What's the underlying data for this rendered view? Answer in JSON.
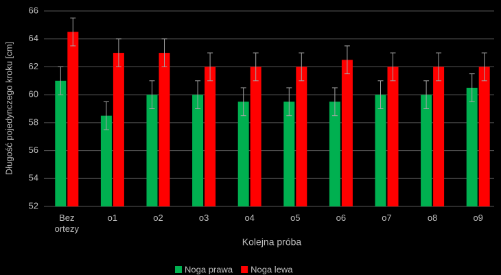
{
  "chart_data": {
    "type": "bar",
    "categories": [
      "Bez ortezy",
      "o1",
      "o2",
      "o3",
      "o4",
      "o5",
      "o6",
      "o7",
      "o8",
      "o9"
    ],
    "series": [
      {
        "name": "Noga prawa",
        "color": "#00b050",
        "values": [
          61,
          58.5,
          60,
          60,
          59.5,
          59.5,
          59.5,
          60,
          60,
          60.5
        ],
        "errors": [
          1,
          1,
          1,
          1,
          1,
          1,
          1,
          1,
          1,
          1
        ]
      },
      {
        "name": "Noga lewa",
        "color": "#ff0000",
        "values": [
          64.5,
          63,
          63,
          62,
          62,
          62,
          62.5,
          62,
          62,
          62
        ],
        "errors": [
          1,
          1,
          1,
          1,
          1,
          1,
          1,
          1,
          1,
          1
        ]
      }
    ],
    "x_label": "Kolejna próba",
    "y_label": "Długość pojedynczego kroku [cm]",
    "ylim": [
      52,
      66
    ],
    "yticks": [
      52,
      54,
      56,
      58,
      60,
      62,
      64,
      66
    ],
    "grid": true
  }
}
